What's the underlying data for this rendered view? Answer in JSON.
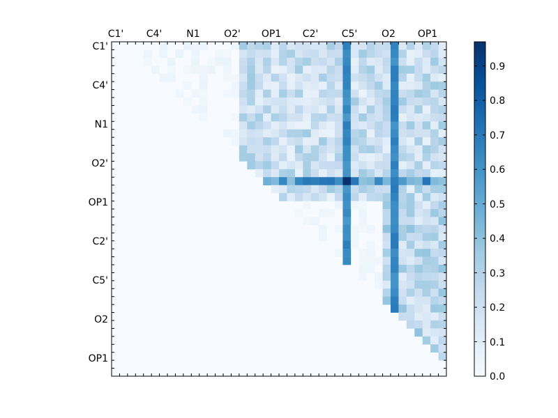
{
  "chart_data": {
    "type": "heatmap",
    "tick_labels": [
      "C1'",
      "C4'",
      "N1",
      "O2'",
      "OP1",
      "C2'",
      "C5'",
      "O2",
      "OP1",
      "C2'",
      "C5'",
      "O2",
      "OP1"
    ],
    "x_tick_labels": [
      "C1'",
      "C4'",
      "N1",
      "O2'",
      "OP1",
      "C2'",
      "C5'",
      "O2",
      "OP1"
    ],
    "y_tick_labels": [
      "C1'",
      "C4'",
      "N1",
      "O2'",
      "OP1",
      "C2'",
      "C5'",
      "O2",
      "OP1"
    ],
    "matrix_size": 42,
    "colormap": "Blues",
    "color_low": "#f7fbff",
    "color_high": "#08306b",
    "colorbar_ticks": [
      "0.0",
      "0.1",
      "0.2",
      "0.3",
      "0.4",
      "0.5",
      "0.6",
      "0.7",
      "0.8",
      "0.9"
    ],
    "colorbar_range": [
      0.0,
      0.97
    ],
    "strong_columns": [
      {
        "col": 29,
        "value": 0.68
      },
      {
        "col": 35,
        "value": 0.7
      }
    ],
    "strong_row": {
      "row": 17,
      "value": 0.72
    },
    "peak": {
      "row": 17,
      "col": 29,
      "value": 0.97
    },
    "title": "",
    "xlabel": "",
    "ylabel": ""
  }
}
